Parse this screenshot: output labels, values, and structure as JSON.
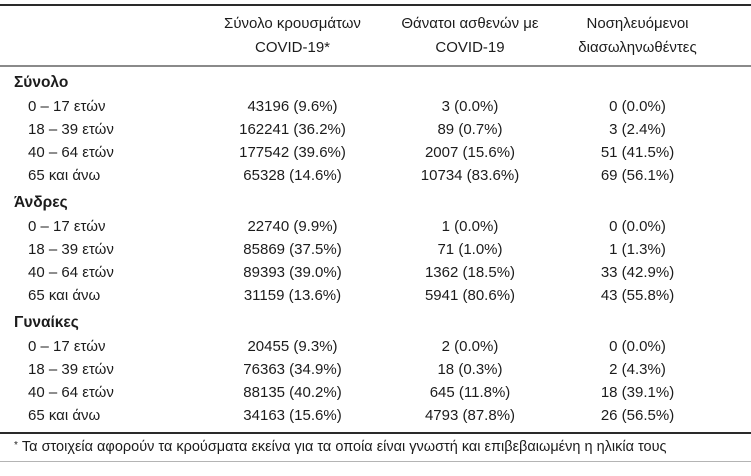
{
  "header": {
    "cases_line1": "Σύνολο κρουσμάτων",
    "cases_line2": "COVID-19*",
    "deaths_line1": "Θάνατοι ασθενών με",
    "deaths_line2": "COVID-19",
    "intubated_line1": "Νοσηλευόμενοι",
    "intubated_line2": "διασωληνωθέντες"
  },
  "sections": [
    {
      "title": "Σύνολο",
      "rows": [
        {
          "label": "0 – 17 ετών",
          "cases": "43196 (9.6%)",
          "deaths": "3 (0.0%)",
          "intubated": "0 (0.0%)"
        },
        {
          "label": "18 – 39 ετών",
          "cases": "162241 (36.2%)",
          "deaths": "89 (0.7%)",
          "intubated": "3 (2.4%)"
        },
        {
          "label": "40 – 64 ετών",
          "cases": "177542 (39.6%)",
          "deaths": "2007 (15.6%)",
          "intubated": "51 (41.5%)"
        },
        {
          "label": "65 και άνω",
          "cases": "65328 (14.6%)",
          "deaths": "10734 (83.6%)",
          "intubated": "69 (56.1%)"
        }
      ]
    },
    {
      "title": "Άνδρες",
      "rows": [
        {
          "label": "0 – 17 ετών",
          "cases": "22740 (9.9%)",
          "deaths": "1 (0.0%)",
          "intubated": "0 (0.0%)"
        },
        {
          "label": "18 – 39 ετών",
          "cases": "85869 (37.5%)",
          "deaths": "71 (1.0%)",
          "intubated": "1 (1.3%)"
        },
        {
          "label": "40 – 64 ετών",
          "cases": "89393 (39.0%)",
          "deaths": "1362 (18.5%)",
          "intubated": "33 (42.9%)"
        },
        {
          "label": "65 και άνω",
          "cases": "31159 (13.6%)",
          "deaths": "5941 (80.6%)",
          "intubated": "43 (55.8%)"
        }
      ]
    },
    {
      "title": "Γυναίκες",
      "rows": [
        {
          "label": "0 – 17 ετών",
          "cases": "20455 (9.3%)",
          "deaths": "2 (0.0%)",
          "intubated": "0 (0.0%)"
        },
        {
          "label": "18 – 39 ετών",
          "cases": "76363 (34.9%)",
          "deaths": "18 (0.3%)",
          "intubated": "2 (4.3%)"
        },
        {
          "label": "40 – 64 ετών",
          "cases": "88135 (40.2%)",
          "deaths": "645 (11.8%)",
          "intubated": "18 (39.1%)"
        },
        {
          "label": "65 και άνω",
          "cases": "34163 (15.6%)",
          "deaths": "4793 (87.8%)",
          "intubated": "26 (56.5%)"
        }
      ]
    }
  ],
  "footnote": {
    "marker": "*",
    "text": "Τα στοιχεία αφορούν τα κρούσματα εκείνα για τα οποία είναι γνωστή και επιβεβαιωμένη η ηλικία τους"
  },
  "colors": {
    "text": "#1c1c1c",
    "rule_dark": "#2a2a2a",
    "rule_gray": "#8a8a8a",
    "rule_light": "#b4b4b4"
  }
}
